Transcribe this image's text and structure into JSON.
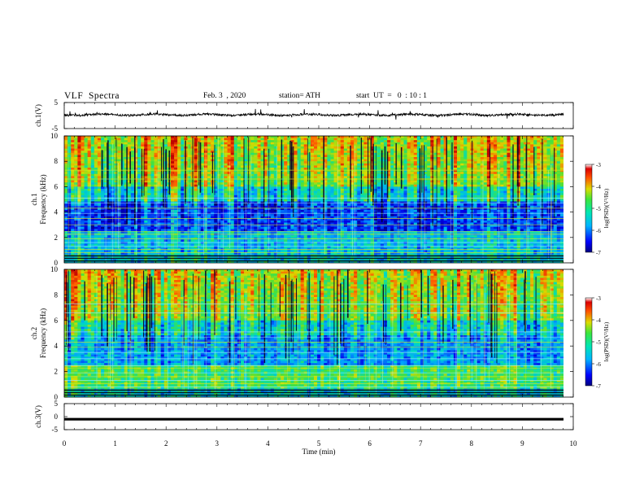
{
  "header": {
    "title": "VLF  Spectra",
    "date": "Feb. 3  , 2020",
    "station": "station= ATH",
    "start": "start  UT  =   0  : 10 : 1"
  },
  "chart_data": [
    {
      "type": "line",
      "name": "ch1-waveform",
      "ylabel": "ch.1(V)",
      "ylim": [
        -5,
        5
      ],
      "yticks": [
        "5",
        "-5"
      ],
      "xlim": [
        0,
        10
      ],
      "approx_level": 0.3
    },
    {
      "type": "heatmap",
      "name": "ch1-spectrogram",
      "ylabel_line1": "ch.1",
      "ylabel_line2": "Frequency (kHz)",
      "ylim": [
        0,
        10
      ],
      "yticks": [
        "0",
        "2",
        "4",
        "6",
        "8",
        "10"
      ],
      "xlim": [
        0,
        9.8
      ],
      "colorbar": {
        "label": "log(PSD)(V²/Hz)",
        "range": [
          -7,
          -3
        ],
        "ticks": [
          "-3",
          "-4",
          "-5",
          "-6",
          "-7"
        ]
      }
    },
    {
      "type": "heatmap",
      "name": "ch2-spectrogram",
      "ylabel_line1": "ch.2",
      "ylabel_line2": "Frequency (kHz)",
      "ylim": [
        0,
        10
      ],
      "yticks": [
        "0",
        "2",
        "4",
        "6",
        "8",
        "10"
      ],
      "xlim": [
        0,
        9.8
      ],
      "colorbar": {
        "label": "log(PSD)(V²/Hz)",
        "range": [
          -7,
          -3
        ],
        "ticks": [
          "-3",
          "-4",
          "-5",
          "-6",
          "-7"
        ]
      }
    },
    {
      "type": "line",
      "name": "ch3-waveform",
      "ylabel": "ch.3(V)",
      "ylim": [
        -5,
        5
      ],
      "yticks": [
        "5",
        "0",
        "-5"
      ],
      "xlim": [
        0,
        10
      ],
      "approx_level": -1
    }
  ],
  "xaxis": {
    "label": "Time  (min)",
    "ticks": [
      "0",
      "1",
      "2",
      "3",
      "4",
      "5",
      "6",
      "7",
      "8",
      "9",
      "10"
    ]
  },
  "colors": {
    "lowest": "#000080",
    "highest": "#b40000"
  }
}
